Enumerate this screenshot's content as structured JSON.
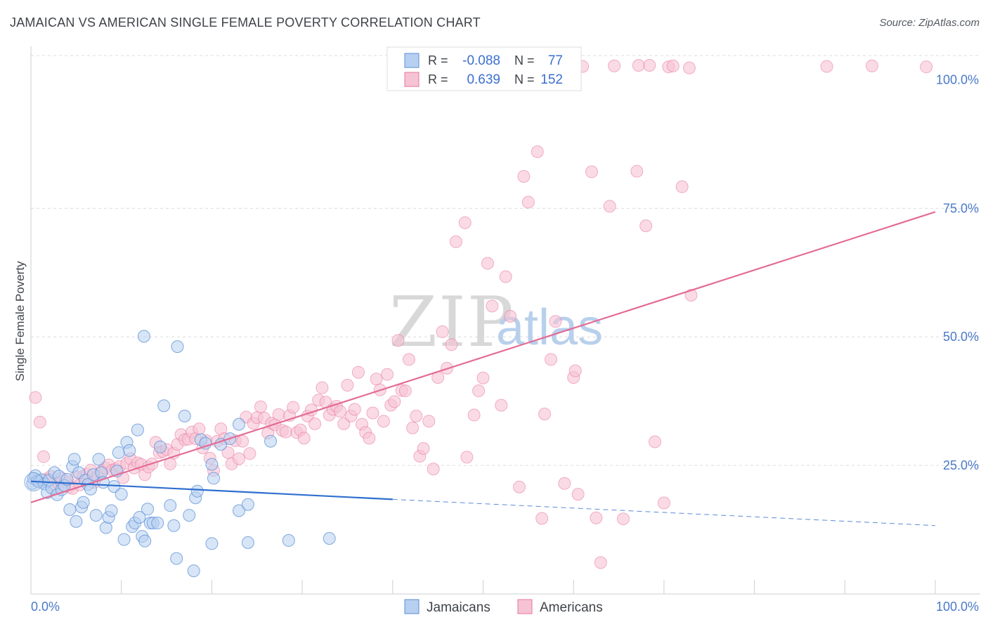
{
  "title": "JAMAICAN VS AMERICAN SINGLE FEMALE POVERTY CORRELATION CHART",
  "source": "Source: ZipAtlas.com",
  "watermark": {
    "zip": "ZIP",
    "atlas": "atlas"
  },
  "colors": {
    "jamaicans": "#5b8fd6",
    "jamaicans_fill": "#b7cff0",
    "americans": "#e8749d",
    "americans_fill": "#f6c3d4",
    "blue_line": "#2f6fcf",
    "pink_line": "#e36c96",
    "tick_label": "#4a79c8",
    "grid": "#dcdcdc"
  },
  "legend": {
    "rows": [
      {
        "r_label": "R =",
        "r_value": "-0.088",
        "n_label": "N =",
        "n_value": "77"
      },
      {
        "r_label": "R =",
        "r_value": "0.639",
        "n_label": "N =",
        "n_value": "152"
      }
    ]
  },
  "bottom_legend": [
    "Jamaicans",
    "Americans"
  ],
  "chart_data": {
    "type": "scatter",
    "title": "JAMAICAN VS AMERICAN SINGLE FEMALE POVERTY CORRELATION CHART",
    "xlabel": "",
    "ylabel": "Single Female Poverty",
    "xlim": [
      0,
      100
    ],
    "ylim": [
      0,
      100
    ],
    "x_tick_labels": [
      "0.0%",
      "100.0%"
    ],
    "y_ticks": [
      25,
      50,
      75,
      100
    ],
    "y_tick_labels": [
      "25.0%",
      "50.0%",
      "75.0%",
      "100.0%"
    ],
    "grid": true,
    "legend_placement": "top-center",
    "series": [
      {
        "name": "Jamaicans",
        "R": -0.088,
        "N": 77,
        "trend": {
          "x0": 0,
          "y0": 21.9,
          "x1": 40,
          "y1": 18.4,
          "dashed_to_x": 100,
          "dashed_to_y": 13.3
        },
        "points": [
          [
            0.2,
            21.5
          ],
          [
            0.3,
            22.5
          ],
          [
            0.5,
            23
          ],
          [
            0.7,
            22
          ],
          [
            0.9,
            21.8
          ],
          [
            1.2,
            22.2
          ],
          [
            1.5,
            21.4
          ],
          [
            1.8,
            19.7
          ],
          [
            2,
            22.1
          ],
          [
            2.3,
            20.6
          ],
          [
            2.6,
            23.6
          ],
          [
            2.9,
            19.3
          ],
          [
            3.1,
            22.9
          ],
          [
            3.4,
            20.3
          ],
          [
            3.7,
            21.1
          ],
          [
            4,
            22.3
          ],
          [
            4.3,
            16.4
          ],
          [
            4.6,
            24.8
          ],
          [
            4.8,
            26.2
          ],
          [
            5,
            14.1
          ],
          [
            5.3,
            23.6
          ],
          [
            5.6,
            16.9
          ],
          [
            5.8,
            17.8
          ],
          [
            6,
            22.1
          ],
          [
            6.3,
            21.3
          ],
          [
            6.6,
            20.4
          ],
          [
            6.9,
            23.2
          ],
          [
            7.2,
            15.3
          ],
          [
            7.5,
            26.2
          ],
          [
            7.8,
            23.6
          ],
          [
            8,
            21.7
          ],
          [
            8.3,
            12.9
          ],
          [
            8.6,
            14.9
          ],
          [
            8.9,
            16.2
          ],
          [
            9.2,
            20.9
          ],
          [
            9.5,
            23.9
          ],
          [
            9.7,
            27.5
          ],
          [
            10,
            19.4
          ],
          [
            10.3,
            10.6
          ],
          [
            10.6,
            29.5
          ],
          [
            10.9,
            27.9
          ],
          [
            11.2,
            13.1
          ],
          [
            11.5,
            13.8
          ],
          [
            11.8,
            31.9
          ],
          [
            12,
            14.9
          ],
          [
            12.3,
            11.2
          ],
          [
            12.6,
            10.3
          ],
          [
            12.9,
            16.5
          ],
          [
            13.2,
            13.8
          ],
          [
            12.5,
            50.1
          ],
          [
            13.5,
            13.8
          ],
          [
            14,
            13.8
          ],
          [
            14.3,
            28.6
          ],
          [
            14.7,
            36.6
          ],
          [
            15.4,
            17.2
          ],
          [
            15.8,
            13.3
          ],
          [
            16.1,
            6.9
          ],
          [
            16.2,
            48.1
          ],
          [
            17,
            34.6
          ],
          [
            17.5,
            15.3
          ],
          [
            18,
            4.5
          ],
          [
            18.2,
            18.7
          ],
          [
            18.4,
            20
          ],
          [
            18.8,
            30
          ],
          [
            19.3,
            29.3
          ],
          [
            20,
            25.2
          ],
          [
            20,
            9.8
          ],
          [
            20.2,
            22.5
          ],
          [
            21,
            29.1
          ],
          [
            22,
            30.2
          ],
          [
            23,
            16.2
          ],
          [
            23,
            33
          ],
          [
            24,
            17.4
          ],
          [
            24,
            10
          ],
          [
            26.5,
            29.7
          ],
          [
            28.5,
            10.4
          ],
          [
            33,
            10.8
          ]
        ]
      },
      {
        "name": "Americans",
        "R": 0.639,
        "N": 152,
        "trend": {
          "x0": 0,
          "y0": 17.8,
          "x1": 100,
          "y1": 74.3
        },
        "points": [
          [
            0.5,
            38.2
          ],
          [
            1,
            33.4
          ],
          [
            1.4,
            26.7
          ],
          [
            1.8,
            22.4
          ],
          [
            2.2,
            22.9
          ],
          [
            2.6,
            20.4
          ],
          [
            3,
            21.6
          ],
          [
            3.4,
            22.5
          ],
          [
            3.8,
            21.9
          ],
          [
            4.2,
            20.8
          ],
          [
            4.6,
            20.5
          ],
          [
            5,
            22.8
          ],
          [
            5.4,
            21.2
          ],
          [
            5.8,
            22.9
          ],
          [
            6.2,
            23.3
          ],
          [
            6.6,
            24.1
          ],
          [
            7,
            21.7
          ],
          [
            7.4,
            22.9
          ],
          [
            7.8,
            23.9
          ],
          [
            8.2,
            24.5
          ],
          [
            8.6,
            25.1
          ],
          [
            9,
            24.1
          ],
          [
            9.4,
            24.3
          ],
          [
            9.8,
            24.8
          ],
          [
            10.2,
            22.6
          ],
          [
            10.6,
            25.4
          ],
          [
            11,
            26.3
          ],
          [
            11.4,
            24.5
          ],
          [
            11.8,
            25.5
          ],
          [
            12.2,
            25.2
          ],
          [
            12.6,
            23.2
          ],
          [
            13,
            24.7
          ],
          [
            13.4,
            25.3
          ],
          [
            13.8,
            29.5
          ],
          [
            14.2,
            27.5
          ],
          [
            14.6,
            27.7
          ],
          [
            15,
            28.1
          ],
          [
            15.4,
            25.3
          ],
          [
            15.8,
            27.4
          ],
          [
            16.2,
            29.1
          ],
          [
            16.6,
            31
          ],
          [
            17,
            30
          ],
          [
            17.4,
            30.1
          ],
          [
            17.8,
            31.5
          ],
          [
            18.2,
            30.2
          ],
          [
            18.6,
            32.1
          ],
          [
            19,
            28.4
          ],
          [
            19.4,
            29.8
          ],
          [
            19.8,
            26.4
          ],
          [
            20.2,
            24
          ],
          [
            20.6,
            29.7
          ],
          [
            21,
            32.1
          ],
          [
            21.4,
            30.2
          ],
          [
            21.8,
            27.5
          ],
          [
            22.2,
            25.3
          ],
          [
            22.6,
            29.8
          ],
          [
            23,
            26.3
          ],
          [
            23.4,
            29.7
          ],
          [
            23.8,
            34.4
          ],
          [
            24.2,
            27.3
          ],
          [
            24.6,
            33.2
          ],
          [
            25,
            34.3
          ],
          [
            25.4,
            36.4
          ],
          [
            25.8,
            34.2
          ],
          [
            26.2,
            31.3
          ],
          [
            26.6,
            33.2
          ],
          [
            27,
            32.9
          ],
          [
            27.4,
            34.9
          ],
          [
            27.8,
            31.8
          ],
          [
            28.2,
            31.5
          ],
          [
            28.6,
            34.7
          ],
          [
            29,
            36.3
          ],
          [
            29.4,
            31.4
          ],
          [
            29.8,
            31.9
          ],
          [
            30.2,
            30.3
          ],
          [
            30.6,
            34.6
          ],
          [
            31,
            35.8
          ],
          [
            31.4,
            33.1
          ],
          [
            31.8,
            37.7
          ],
          [
            32.2,
            40.1
          ],
          [
            32.6,
            37.3
          ],
          [
            33,
            34.8
          ],
          [
            33.4,
            35.9
          ],
          [
            33.8,
            36.5
          ],
          [
            34.2,
            35.5
          ],
          [
            34.6,
            33.1
          ],
          [
            35,
            40.6
          ],
          [
            35.4,
            34.6
          ],
          [
            35.8,
            35.9
          ],
          [
            36.2,
            43.1
          ],
          [
            36.6,
            33
          ],
          [
            37,
            31.4
          ],
          [
            37.4,
            30.3
          ],
          [
            37.8,
            35.2
          ],
          [
            38.2,
            41.8
          ],
          [
            38.6,
            39.7
          ],
          [
            39,
            33.6
          ],
          [
            39.4,
            42.7
          ],
          [
            39.8,
            36.7
          ],
          [
            40.2,
            37.4
          ],
          [
            40.6,
            49.3
          ],
          [
            41,
            39.6
          ],
          [
            41.4,
            39.5
          ],
          [
            41.8,
            45.6
          ],
          [
            42.2,
            32.3
          ],
          [
            42.6,
            34.6
          ],
          [
            43,
            26.8
          ],
          [
            43.4,
            28.3
          ],
          [
            44,
            33.6
          ],
          [
            44.5,
            24.3
          ],
          [
            45,
            42.1
          ],
          [
            45.5,
            51
          ],
          [
            46,
            43.9
          ],
          [
            46.5,
            48.5
          ],
          [
            47,
            68.5
          ],
          [
            48,
            72.2
          ],
          [
            48.2,
            26.6
          ],
          [
            49,
            34.8
          ],
          [
            49.5,
            39.5
          ],
          [
            50,
            42
          ],
          [
            50.5,
            64.3
          ],
          [
            51,
            56
          ],
          [
            52,
            36.7
          ],
          [
            53,
            54
          ],
          [
            52.5,
            61.7
          ],
          [
            54,
            20.8
          ],
          [
            54.5,
            81.2
          ],
          [
            55,
            76.2
          ],
          [
            56,
            86
          ],
          [
            56.5,
            14.7
          ],
          [
            56.8,
            35
          ],
          [
            57.5,
            45.6
          ],
          [
            58,
            53
          ],
          [
            59,
            21.5
          ],
          [
            60,
            42.1
          ],
          [
            60.5,
            19.4
          ],
          [
            60.2,
            43.4
          ],
          [
            62,
            82.1
          ],
          [
            62.5,
            14.8
          ],
          [
            63,
            6.1
          ],
          [
            64,
            75.4
          ],
          [
            65.5,
            14.6
          ],
          [
            67,
            82.2
          ],
          [
            68,
            71.6
          ],
          [
            69,
            29.6
          ],
          [
            70,
            17.7
          ],
          [
            72,
            79.2
          ],
          [
            73,
            58.1
          ],
          [
            64.5,
            102.7
          ],
          [
            72.8,
            102.3
          ],
          [
            61,
            102.6
          ],
          [
            67.2,
            102.8
          ],
          [
            68.4,
            102.8
          ],
          [
            88,
            102.6
          ],
          [
            93,
            102.7
          ],
          [
            99,
            102.5
          ],
          [
            70.5,
            102.5
          ],
          [
            71,
            102.7
          ],
          [
            51.2,
            102.8
          ]
        ]
      }
    ]
  }
}
